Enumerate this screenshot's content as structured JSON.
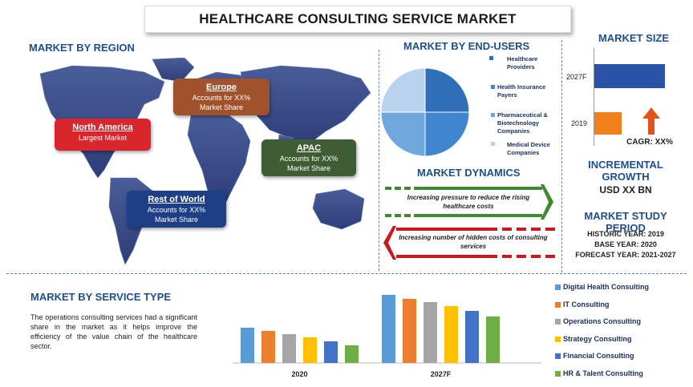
{
  "title": "HEALTHCARE CONSULTING SERVICE MARKET",
  "region": {
    "heading": "MARKET BY REGION",
    "boxes": [
      {
        "name": "Europe",
        "desc1": "Accounts for XX%",
        "desc2": "Market Share",
        "color": "#a0522d"
      },
      {
        "name": "North America",
        "desc1": "Largest Market",
        "desc2": "",
        "color": "#d8262c"
      },
      {
        "name": "APAC",
        "desc1": "Accounts for XX%",
        "desc2": "Market Share",
        "color": "#3f5d34"
      },
      {
        "name": "Rest of World",
        "desc1": "Accounts for XX%",
        "desc2": "Market Share",
        "color": "#1e3f86"
      }
    ]
  },
  "end_users": {
    "heading": "MARKET BY END-USERS",
    "legend": [
      {
        "label1": "Healthcare",
        "label2": "Providers",
        "label3": "",
        "color": "#2e6fb8"
      },
      {
        "label1": "Health Insurance",
        "label2": "Payers",
        "label3": "",
        "color": "#3f86cf"
      },
      {
        "label1": "Pharmaceutical &",
        "label2": "Biotechnology",
        "label3": "Companies",
        "color": "#6fa8dc"
      },
      {
        "label1": "Medical Device",
        "label2": "Companies",
        "label3": "",
        "color": "#b9d3ee"
      }
    ]
  },
  "dynamics": {
    "heading": "MARKET DYNAMICS",
    "driver": "Increasing pressure to reduce the rising healthcare costs",
    "restraint": "Increasing number of hidden costs of consulting services",
    "driver_color": "#3d8b2f",
    "restraint_color": "#c8191f"
  },
  "market_size": {
    "heading": "MARKET SIZE",
    "bars": [
      {
        "label": "2027F",
        "color": "#2a52a8"
      },
      {
        "label": "2019",
        "color": "#f0801a"
      }
    ],
    "cagr": "CAGR: XX%",
    "arrow_color": "#e2521c"
  },
  "growth": {
    "heading": "INCREMENTAL GROWTH",
    "value": "USD XX BN"
  },
  "period": {
    "heading": "MARKET STUDY PERIOD",
    "historic": "HISTORIC YEAR: 2019",
    "base": "BASE YEAR: 2020",
    "forecast": "FORECAST YEAR: 2021-2027"
  },
  "service": {
    "heading": "MARKET BY SERVICE TYPE",
    "description": "The operations consulting services had a significant share in the market as it helps improve the efficiency of the value chain of the healthcare sector."
  },
  "chart_data": [
    {
      "type": "pie",
      "categories": [
        "Healthcare Providers",
        "Health Insurance Payers",
        "Pharmaceutical & Biotechnology Companies",
        "Medical Device Companies"
      ],
      "values": [
        25,
        25,
        25,
        25
      ],
      "colors": [
        "#2e6fb8",
        "#3f86cf",
        "#6fa8dc",
        "#b9d3ee"
      ]
    },
    {
      "type": "bar",
      "categories": [
        "2027F",
        "2019"
      ],
      "values": [
        100,
        39
      ],
      "colors": [
        "#2a52a8",
        "#f0801a"
      ],
      "orientation": "horizontal"
    },
    {
      "type": "bar",
      "categories": [
        "2020",
        "2027F"
      ],
      "series": [
        {
          "name": "Digital Health Consulting",
          "values": [
            44,
            85
          ],
          "color": "#5b9bd5"
        },
        {
          "name": "IT Consulting",
          "values": [
            40,
            80
          ],
          "color": "#ed7d31"
        },
        {
          "name": "Operations Consulting",
          "values": [
            36,
            76
          ],
          "color": "#a5a5a5"
        },
        {
          "name": "Strategy Consulting",
          "values": [
            32,
            71
          ],
          "color": "#ffc000"
        },
        {
          "name": "Financial Consulting",
          "values": [
            27,
            65
          ],
          "color": "#4472c4"
        },
        {
          "name": "HR & Talent Consulting",
          "values": [
            22,
            58
          ],
          "color": "#70ad47"
        }
      ],
      "ylim": [
        0,
        85
      ]
    }
  ]
}
